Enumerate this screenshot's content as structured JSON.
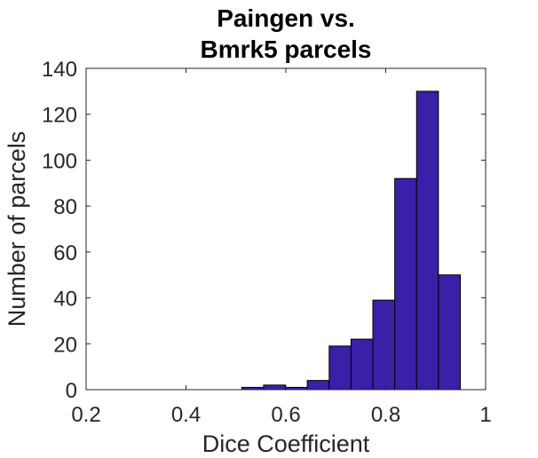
{
  "chart_data": {
    "type": "bar",
    "title_lines": [
      "Paingen vs.",
      "Bmrk5 parcels"
    ],
    "xlabel": "Dice Coefficient",
    "ylabel": "Number of parcels",
    "xlim": [
      0.2,
      1.0
    ],
    "ylim": [
      0,
      140
    ],
    "xticks": [
      0.2,
      0.4,
      0.6,
      0.8,
      1.0
    ],
    "xtick_labels": [
      "0.2",
      "0.4",
      "0.6",
      "0.8",
      "1"
    ],
    "yticks": [
      0,
      20,
      40,
      60,
      80,
      100,
      120,
      140
    ],
    "ytick_labels": [
      "0",
      "20",
      "40",
      "60",
      "80",
      "100",
      "120",
      "140"
    ],
    "bin_edges": [
      0.5116,
      0.5553,
      0.5991,
      0.6429,
      0.6867,
      0.7304,
      0.7742,
      0.818,
      0.8618,
      0.9055,
      0.9493
    ],
    "counts": [
      1,
      2,
      1,
      4,
      19,
      22,
      39,
      92,
      130,
      50
    ],
    "bar_color": "#3a1fa8",
    "bar_edge_color": "#000000",
    "grid": false
  }
}
